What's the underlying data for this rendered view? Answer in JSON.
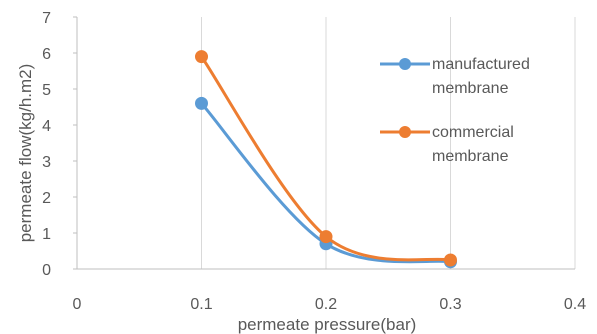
{
  "chart_data": {
    "type": "scatter",
    "xlabel": "permeate pressure(bar)",
    "ylabel": "permeate flow(kg/h.m2)",
    "xlim": [
      0,
      0.4
    ],
    "ylim": [
      0,
      7
    ],
    "x_ticks": [
      "0",
      "0.1",
      "0.2",
      "0.3",
      "0.4"
    ],
    "y_ticks": [
      "0",
      "1",
      "2",
      "3",
      "4",
      "5",
      "6",
      "7"
    ],
    "grid": "vertical",
    "smooth_lines": true,
    "legend": "right",
    "series": [
      {
        "name": "manufactured membrane",
        "name_lines": [
          "manufactured",
          "membrane"
        ],
        "color": "#5B9BD5",
        "x": [
          0.1,
          0.2,
          0.3
        ],
        "y": [
          4.6,
          0.7,
          0.2
        ]
      },
      {
        "name": "commercial membrane",
        "name_lines": [
          "commercial",
          "membrane"
        ],
        "color": "#ED7D31",
        "x": [
          0.1,
          0.2,
          0.3
        ],
        "y": [
          5.9,
          0.9,
          0.25
        ]
      }
    ]
  }
}
